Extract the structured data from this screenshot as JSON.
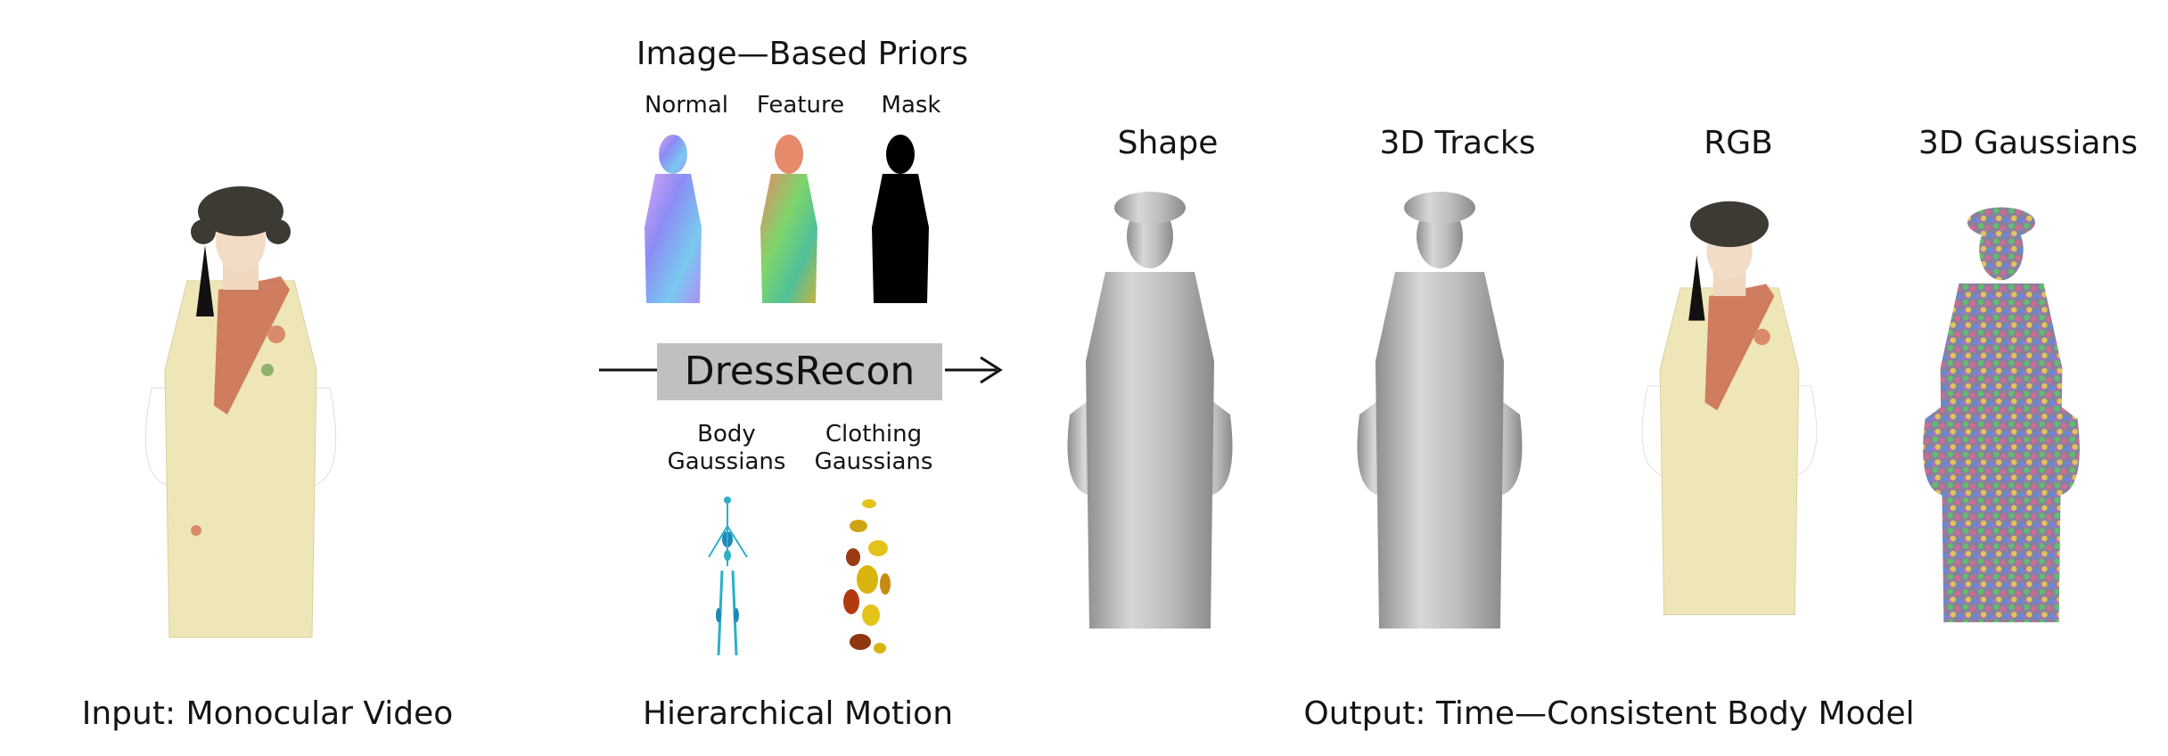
{
  "priors": {
    "title": "Image—Based Priors",
    "normal_label": "Normal",
    "feature_label": "Feature",
    "mask_label": "Mask"
  },
  "method": {
    "name": "DressRecon",
    "body_gaussians_line1": "Body",
    "body_gaussians_line2": "Gaussians",
    "clothing_gaussians_line1": "Clothing",
    "clothing_gaussians_line2": "Gaussians"
  },
  "outputs": {
    "shape_label": "Shape",
    "tracks_label": "3D Tracks",
    "rgb_label": "RGB",
    "gaussians_label": "3D Gaussians"
  },
  "captions": {
    "input": "Input: Monocular Video",
    "motion": "Hierarchical Motion",
    "output": "Output: Time—Consistent Body Model"
  },
  "colors": {
    "robe": "#efe6b8",
    "sleeve": "#ffffff",
    "hair": "#3c3a32",
    "sash": "#c96a4d",
    "mesh": "#a9a9a9",
    "banner": "#c0c0c0",
    "body_gaussian": "#2bb0c8",
    "clothing_gaussian": "#c78a12"
  }
}
